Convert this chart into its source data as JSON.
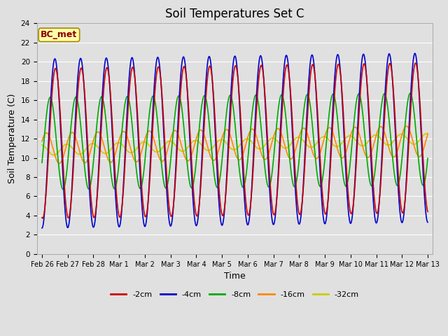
{
  "title": "Soil Temperatures Set C",
  "xlabel": "Time",
  "ylabel": "Soil Temperature (C)",
  "annotation": "BC_met",
  "ylim": [
    0,
    24
  ],
  "series": {
    "-2cm": {
      "color": "#cc0000",
      "lw": 1.2
    },
    "-4cm": {
      "color": "#0000cc",
      "lw": 1.2
    },
    "-8cm": {
      "color": "#00aa00",
      "lw": 1.2
    },
    "-16cm": {
      "color": "#ff8800",
      "lw": 1.2
    },
    "-32cm": {
      "color": "#cccc00",
      "lw": 1.2
    }
  },
  "xtick_labels": [
    "Feb 26",
    "Feb 27",
    "Feb 28",
    "Mar 1",
    "Mar 2",
    "Mar 3",
    "Mar 4",
    "Mar 5",
    "Mar 6",
    "Mar 7",
    "Mar 8",
    "Mar 9",
    "Mar 10",
    "Mar 11",
    "Mar 12",
    "Mar 13"
  ],
  "xtick_positions": [
    0,
    1,
    2,
    3,
    4,
    5,
    6,
    7,
    8,
    9,
    10,
    11,
    12,
    13,
    14,
    15
  ],
  "fig_width": 6.4,
  "fig_height": 4.8,
  "dpi": 100,
  "bg_color": "#e0e0e0",
  "grid_color": "#ffffff",
  "title_fontsize": 12,
  "label_fontsize": 9,
  "tick_fontsize": 7,
  "legend_fontsize": 8
}
